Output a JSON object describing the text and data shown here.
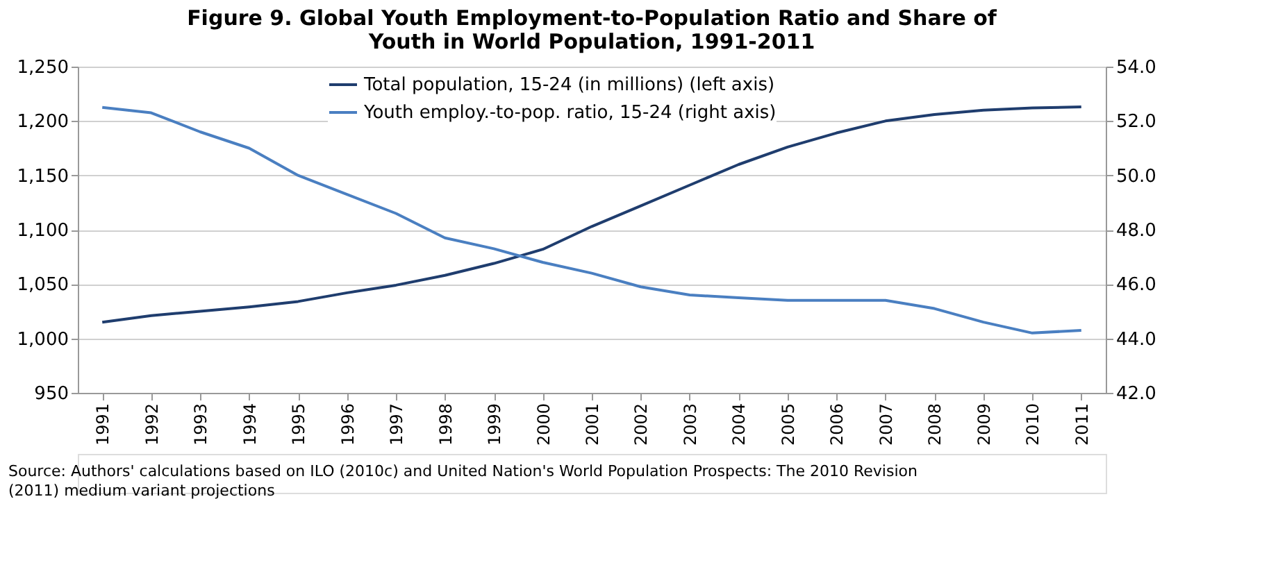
{
  "chart_data": {
    "type": "line",
    "title": "Figure 9. Global Youth Employment-to-Population Ratio and Share of Youth in World Population, 1991-2011",
    "categories": [
      "1991",
      "1992",
      "1993",
      "1994",
      "1995",
      "1996",
      "1997",
      "1998",
      "1999",
      "2000",
      "2001",
      "2002",
      "2003",
      "2004",
      "2005",
      "2006",
      "2007",
      "2008",
      "2009",
      "2010",
      "2011"
    ],
    "series": [
      {
        "name": "Total population, 15-24 (in millions) (left axis)",
        "color": "#1f3d6e",
        "values": [
          1015,
          1021,
          1025,
          1029,
          1034,
          1042,
          1049,
          1058,
          1069,
          1082,
          1103,
          1122,
          1141,
          1160,
          1176,
          1189,
          1200,
          1206,
          1210,
          1212,
          1213
        ]
      },
      {
        "name": "Youth employ.-to-pop. ratio, 15-24 (right axis)",
        "color": "#4a7fc1",
        "axis": "y2",
        "values": [
          52.5,
          52.3,
          51.6,
          51.0,
          50.0,
          49.3,
          48.6,
          47.7,
          47.3,
          46.8,
          46.4,
          45.9,
          45.6,
          45.5,
          45.4,
          45.4,
          45.4,
          45.1,
          44.6,
          44.2,
          44.3
        ]
      }
    ],
    "ylim": [
      950,
      1250
    ],
    "yticks": [
      {
        "value": 950,
        "label": "950"
      },
      {
        "value": 1000,
        "label": "1,000"
      },
      {
        "value": 1050,
        "label": "1,050"
      },
      {
        "value": 1100,
        "label": "1,100"
      },
      {
        "value": 1150,
        "label": "1,150"
      },
      {
        "value": 1200,
        "label": "1,200"
      },
      {
        "value": 1250,
        "label": "1,250"
      }
    ],
    "y2lim": [
      42,
      54
    ],
    "y2ticks": [
      {
        "value": 42,
        "label": "42.0"
      },
      {
        "value": 44,
        "label": "44.0"
      },
      {
        "value": 46,
        "label": "46.0"
      },
      {
        "value": 48,
        "label": "48.0"
      },
      {
        "value": 50,
        "label": "50.0"
      },
      {
        "value": 52,
        "label": "52.0"
      },
      {
        "value": 54,
        "label": "54.0"
      }
    ],
    "grid": "y",
    "legend": "top",
    "line_style": "solid",
    "marker": "none",
    "annotations": [
      "Source: Authors' calculations based on ILO (2010c) and United Nation's World Population Prospects: The 2010 Revision (2011) medium variant projections"
    ]
  }
}
